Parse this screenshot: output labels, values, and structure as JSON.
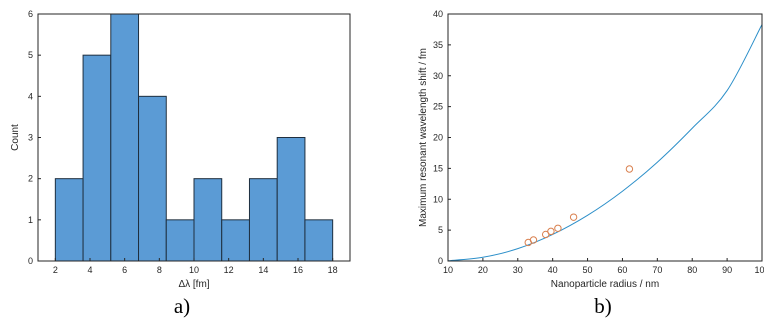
{
  "chart_data": [
    {
      "type": "bar",
      "bin_edges": [
        2,
        3.6,
        5.2,
        6.8,
        8.4,
        10,
        11.6,
        13.2,
        14.8,
        16.4,
        18
      ],
      "values": [
        2,
        5,
        6,
        4,
        1,
        2,
        1,
        2,
        3,
        1
      ],
      "xlabel": "Δλ [fm]",
      "ylabel": "Count",
      "xlim": [
        1,
        19
      ],
      "ylim": [
        0,
        6
      ],
      "xticks": [
        2,
        4,
        6,
        8,
        10,
        12,
        14,
        16,
        18
      ],
      "yticks": [
        0,
        1,
        2,
        3,
        4,
        5,
        6
      ],
      "grid": false,
      "panel_label": "a)",
      "colors": {
        "bar_fill": "#5b9bd5",
        "bar_edge": "#1f2f3f"
      }
    },
    {
      "type": "scatter",
      "series": [
        {
          "kind": "line",
          "x": [
            10,
            20,
            30,
            40,
            50,
            60,
            70,
            80,
            90,
            100
          ],
          "y": [
            0.04,
            0.6,
            2.0,
            4.3,
            7.4,
            11.3,
            16.0,
            21.5,
            27.6,
            38.3
          ]
        },
        {
          "kind": "markers",
          "x": [
            33,
            34.5,
            38,
            39.5,
            41.5,
            46,
            62
          ],
          "y": [
            3.0,
            3.4,
            4.3,
            4.8,
            5.3,
            7.1,
            14.9
          ]
        }
      ],
      "xlabel": "Nanoparticle radius / nm",
      "ylabel": "Maximum resonant wavelength shift / fm",
      "xlim": [
        10,
        100
      ],
      "ylim": [
        0,
        40
      ],
      "xticks": [
        10,
        20,
        30,
        40,
        50,
        60,
        70,
        80,
        90,
        100
      ],
      "yticks": [
        0,
        5,
        10,
        15,
        20,
        25,
        30,
        35,
        40
      ],
      "grid": false,
      "panel_label": "b)",
      "colors": {
        "line": "#2c8fc9",
        "markers": "#d9804f"
      }
    }
  ]
}
